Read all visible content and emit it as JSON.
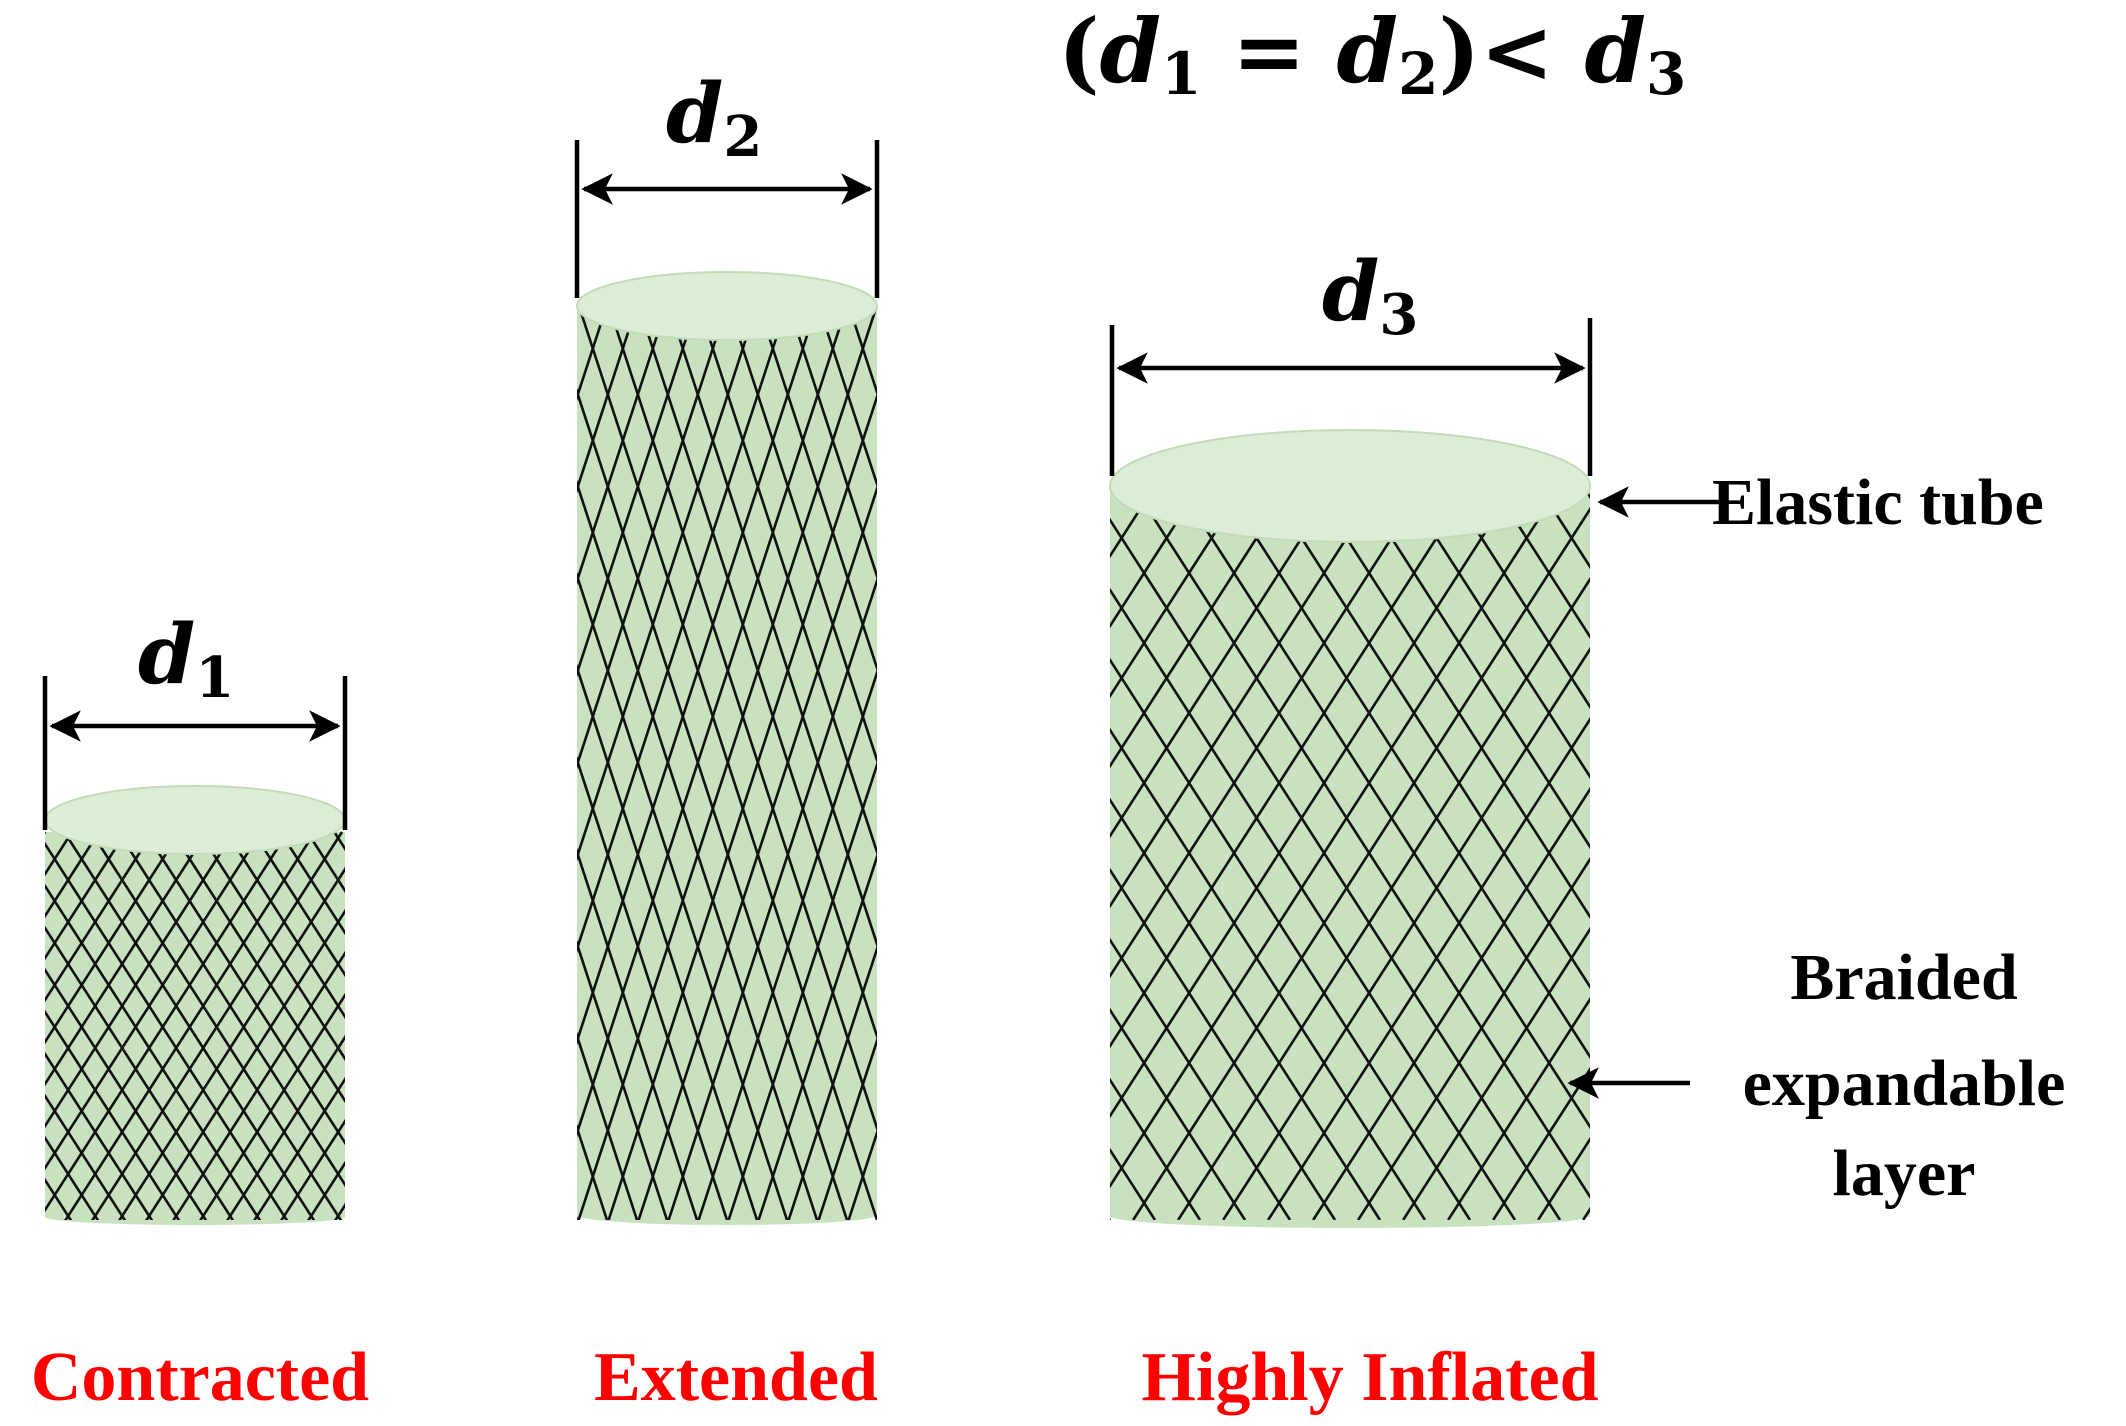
{
  "relation": {
    "open": "(",
    "d1": "d",
    "sub1": "1",
    "equals": " = ",
    "d2": "d",
    "sub2": "2",
    "close_lt": ")< ",
    "d3": "d",
    "sub3": "3"
  },
  "dimensions": [
    {
      "symbol": "d",
      "subscript": "1"
    },
    {
      "symbol": "d",
      "subscript": "2"
    },
    {
      "symbol": "d",
      "subscript": "3"
    }
  ],
  "states": [
    "Contracted",
    "Extended",
    "Highly Inflated"
  ],
  "annotations": {
    "elastic_tube": "Elastic tube",
    "braided_layer": [
      "Braided",
      "expandable",
      "layer"
    ]
  },
  "colors": {
    "tube_fill": "#c8e2bf",
    "tube_top": "#dcecd6",
    "mesh": "#111111",
    "state_label": "#ff0000"
  }
}
